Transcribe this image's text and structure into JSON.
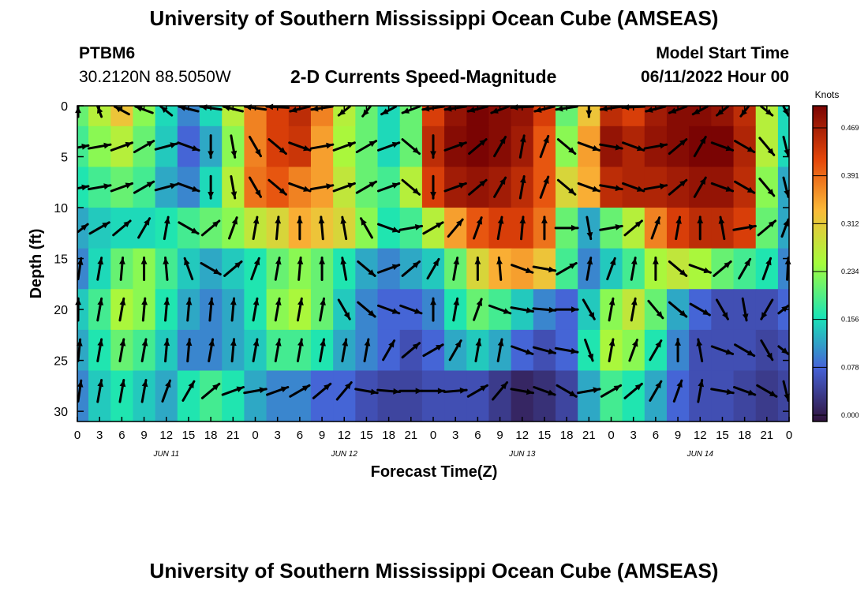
{
  "header": {
    "title": "University of Southern Mississippi Ocean Cube (AMSEAS)",
    "station": "PTBM6",
    "coords": "30.2120N  88.5050W",
    "subtitle": "2-D Currents Speed-Magnitude",
    "start_label": "Model Start Time",
    "start_value": "06/11/2022 Hour 00"
  },
  "footer": {
    "title": "University of Southern Mississippi Ocean Cube (AMSEAS)"
  },
  "colors": {
    "c0": "#30123b",
    "c1": "#4662d7",
    "c2": "#1ae4b6",
    "c3": "#a4fc3c",
    "c4": "#fbb938",
    "c5": "#e4460a",
    "c6": "#7a0403"
  },
  "chart_data": {
    "type": "heatmap",
    "xlabel": "Forecast Time(Z)",
    "ylabel": "Depth (ft)",
    "colorbar_label": "Knots",
    "colorbar_ticks": [
      "0.469",
      "0.391",
      "0.312",
      "0.234",
      "0.156",
      "0.078",
      "0.000"
    ],
    "x_tick_labels": [
      "0",
      "3",
      "6",
      "9",
      "12",
      "15",
      "18",
      "21",
      "0",
      "3",
      "6",
      "9",
      "12",
      "15",
      "18",
      "21",
      "0",
      "3",
      "6",
      "9",
      "12",
      "15",
      "18",
      "21",
      "0",
      "3",
      "6",
      "9",
      "12",
      "15",
      "18",
      "21",
      "0"
    ],
    "date_labels": [
      "JUN 11",
      "JUN 12",
      "JUN 13",
      "JUN 14"
    ],
    "y_tick_labels": [
      "0",
      "5",
      "10",
      "15",
      "20",
      "25",
      "30"
    ],
    "ylim": [
      0,
      31
    ],
    "xlim_hours": [
      0,
      96
    ],
    "depths_ft": [
      0,
      4,
      8,
      12,
      16,
      20,
      24,
      28
    ],
    "hours": [
      0,
      3,
      6,
      9,
      12,
      15,
      18,
      21,
      24,
      27,
      30,
      33,
      36,
      39,
      42,
      45,
      48,
      51,
      54,
      57,
      60,
      63,
      66,
      69,
      72,
      75,
      78,
      81,
      84,
      87,
      90,
      93,
      96
    ],
    "speed_knots": [
      [
        0.2,
        0.25,
        0.3,
        0.22,
        0.15,
        0.1,
        0.15,
        0.25,
        0.35,
        0.4,
        0.42,
        0.35,
        0.25,
        0.2,
        0.15,
        0.2,
        0.4,
        0.45,
        0.47,
        0.46,
        0.45,
        0.4,
        0.2,
        0.3,
        0.42,
        0.4,
        0.44,
        0.46,
        0.46,
        0.45,
        0.42,
        0.25,
        0.15
      ],
      [
        0.18,
        0.22,
        0.25,
        0.2,
        0.14,
        0.08,
        0.12,
        0.22,
        0.35,
        0.4,
        0.41,
        0.33,
        0.24,
        0.2,
        0.15,
        0.2,
        0.42,
        0.46,
        0.47,
        0.46,
        0.44,
        0.38,
        0.22,
        0.33,
        0.45,
        0.43,
        0.45,
        0.46,
        0.47,
        0.47,
        0.43,
        0.25,
        0.15
      ],
      [
        0.16,
        0.18,
        0.2,
        0.18,
        0.12,
        0.1,
        0.15,
        0.25,
        0.36,
        0.38,
        0.35,
        0.33,
        0.26,
        0.2,
        0.18,
        0.25,
        0.4,
        0.44,
        0.45,
        0.44,
        0.42,
        0.38,
        0.28,
        0.32,
        0.42,
        0.43,
        0.43,
        0.44,
        0.45,
        0.45,
        0.42,
        0.22,
        0.12
      ],
      [
        0.12,
        0.14,
        0.15,
        0.15,
        0.16,
        0.18,
        0.2,
        0.22,
        0.26,
        0.28,
        0.32,
        0.3,
        0.28,
        0.22,
        0.16,
        0.18,
        0.25,
        0.33,
        0.38,
        0.4,
        0.4,
        0.36,
        0.2,
        0.12,
        0.2,
        0.25,
        0.35,
        0.4,
        0.42,
        0.42,
        0.4,
        0.2,
        0.12
      ],
      [
        0.1,
        0.15,
        0.2,
        0.22,
        0.18,
        0.14,
        0.12,
        0.14,
        0.16,
        0.2,
        0.22,
        0.2,
        0.16,
        0.12,
        0.1,
        0.12,
        0.14,
        0.2,
        0.28,
        0.32,
        0.33,
        0.3,
        0.18,
        0.1,
        0.14,
        0.18,
        0.24,
        0.26,
        0.24,
        0.2,
        0.18,
        0.16,
        0.1
      ],
      [
        0.14,
        0.18,
        0.24,
        0.22,
        0.16,
        0.12,
        0.1,
        0.12,
        0.16,
        0.22,
        0.24,
        0.2,
        0.14,
        0.1,
        0.08,
        0.08,
        0.1,
        0.16,
        0.2,
        0.18,
        0.14,
        0.1,
        0.08,
        0.14,
        0.22,
        0.26,
        0.2,
        0.12,
        0.08,
        0.06,
        0.06,
        0.06,
        0.08
      ],
      [
        0.12,
        0.16,
        0.2,
        0.18,
        0.14,
        0.1,
        0.1,
        0.12,
        0.14,
        0.18,
        0.18,
        0.16,
        0.12,
        0.1,
        0.08,
        0.06,
        0.08,
        0.12,
        0.14,
        0.12,
        0.08,
        0.06,
        0.08,
        0.16,
        0.24,
        0.22,
        0.16,
        0.1,
        0.06,
        0.06,
        0.06,
        0.05,
        0.06
      ],
      [
        0.1,
        0.14,
        0.16,
        0.14,
        0.12,
        0.16,
        0.18,
        0.16,
        0.12,
        0.1,
        0.1,
        0.08,
        0.08,
        0.06,
        0.05,
        0.05,
        0.06,
        0.06,
        0.06,
        0.04,
        0.02,
        0.03,
        0.05,
        0.12,
        0.18,
        0.16,
        0.12,
        0.08,
        0.06,
        0.06,
        0.05,
        0.04,
        0.05
      ]
    ],
    "arrow_angles_deg": [
      [
        90,
        100,
        130,
        140,
        120,
        150,
        160,
        150,
        160,
        170,
        -150,
        -160,
        -120,
        -110,
        -130,
        -140,
        -160,
        -160,
        -150,
        -140,
        -170,
        -150,
        -160,
        -90,
        -160,
        -170,
        -150,
        -140,
        -130,
        -120,
        -110,
        -60,
        -60
      ],
      [
        5,
        10,
        20,
        30,
        15,
        -20,
        -90,
        -80,
        -60,
        -40,
        -20,
        10,
        20,
        30,
        20,
        -40,
        -90,
        20,
        40,
        60,
        80,
        70,
        -40,
        -20,
        -10,
        -20,
        10,
        40,
        60,
        -20,
        -30,
        -50,
        -60
      ],
      [
        5,
        10,
        20,
        30,
        15,
        -20,
        -90,
        -80,
        -60,
        -40,
        -20,
        10,
        20,
        30,
        20,
        -40,
        -90,
        20,
        40,
        60,
        80,
        70,
        -40,
        -20,
        -10,
        -20,
        10,
        40,
        60,
        -20,
        -30,
        -50,
        -60
      ],
      [
        20,
        30,
        40,
        60,
        80,
        -30,
        40,
        70,
        80,
        85,
        90,
        95,
        100,
        120,
        -20,
        10,
        30,
        50,
        70,
        80,
        85,
        90,
        0,
        -80,
        10,
        40,
        70,
        80,
        90,
        100,
        10,
        40,
        50
      ],
      [
        70,
        80,
        85,
        90,
        95,
        110,
        -30,
        40,
        70,
        80,
        85,
        90,
        100,
        -40,
        20,
        40,
        60,
        80,
        90,
        95,
        -20,
        -10,
        30,
        80,
        70,
        80,
        90,
        -40,
        -20,
        40,
        60,
        70,
        80
      ],
      [
        85,
        80,
        80,
        85,
        85,
        85,
        85,
        85,
        80,
        80,
        80,
        80,
        -60,
        -40,
        -20,
        -20,
        90,
        80,
        70,
        -20,
        -10,
        -5,
        0,
        -60,
        80,
        80,
        -50,
        -40,
        -30,
        -60,
        -80,
        -120,
        20
      ],
      [
        75,
        80,
        80,
        80,
        85,
        85,
        80,
        85,
        80,
        80,
        80,
        80,
        80,
        80,
        60,
        40,
        30,
        60,
        80,
        80,
        -20,
        -15,
        -10,
        -70,
        80,
        70,
        60,
        90,
        100,
        -20,
        -30,
        -60,
        -20
      ],
      [
        70,
        80,
        80,
        80,
        70,
        60,
        40,
        20,
        10,
        20,
        30,
        40,
        50,
        -10,
        -5,
        0,
        0,
        5,
        30,
        50,
        -10,
        -20,
        -30,
        10,
        30,
        40,
        60,
        70,
        80,
        -10,
        -20,
        -30,
        -60
      ]
    ]
  }
}
